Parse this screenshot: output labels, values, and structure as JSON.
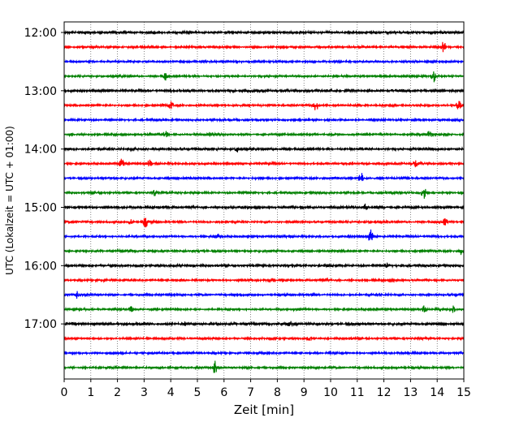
{
  "chart_data": {
    "type": "line",
    "title": "",
    "xlabel": "Zeit  [min]",
    "ylabel": "UTC (Lokalzeit = UTC + 01:00)",
    "xlim": [
      0,
      15
    ],
    "x_ticks": [
      "0",
      "1",
      "2",
      "3",
      "4",
      "5",
      "6",
      "7",
      "8",
      "9",
      "10",
      "11",
      "12",
      "13",
      "14",
      "15"
    ],
    "y_ticks": [
      "12:00",
      "13:00",
      "14:00",
      "15:00",
      "16:00",
      "17:00"
    ],
    "row_interval_minutes": 15,
    "grid": "vertical dotted",
    "colors": [
      "#000000",
      "#ff0000",
      "#0000ff",
      "#008000"
    ],
    "traces": [
      {
        "start": "12:00",
        "color": "#000000",
        "events": []
      },
      {
        "start": "12:15",
        "color": "#ff0000",
        "events": [
          {
            "t": 14.25,
            "amp": 1.0
          }
        ]
      },
      {
        "start": "12:30",
        "color": "#0000ff",
        "events": []
      },
      {
        "start": "12:45",
        "color": "#008000",
        "events": [
          {
            "t": 3.8,
            "amp": 0.5
          },
          {
            "t": 13.85,
            "amp": 1.0
          }
        ]
      },
      {
        "start": "13:00",
        "color": "#000000",
        "events": []
      },
      {
        "start": "13:15",
        "color": "#ff0000",
        "events": [
          {
            "t": 4.0,
            "amp": 0.5
          },
          {
            "t": 9.45,
            "amp": 0.9
          },
          {
            "t": 14.8,
            "amp": 0.6
          }
        ]
      },
      {
        "start": "13:30",
        "color": "#0000ff",
        "events": []
      },
      {
        "start": "13:45",
        "color": "#008000",
        "events": [
          {
            "t": 3.8,
            "amp": 0.8
          },
          {
            "t": 5.5,
            "amp": 0.4
          },
          {
            "t": 13.7,
            "amp": 0.6
          }
        ]
      },
      {
        "start": "14:00",
        "color": "#000000",
        "events": [
          {
            "t": 6.5,
            "amp": 0.4
          }
        ]
      },
      {
        "start": "14:15",
        "color": "#ff0000",
        "events": [
          {
            "t": 2.15,
            "amp": 0.8
          },
          {
            "t": 3.2,
            "amp": 0.6
          },
          {
            "t": 13.2,
            "amp": 0.5
          }
        ]
      },
      {
        "start": "14:30",
        "color": "#0000ff",
        "events": [
          {
            "t": 11.15,
            "amp": 0.9
          }
        ]
      },
      {
        "start": "14:45",
        "color": "#008000",
        "events": [
          {
            "t": 3.4,
            "amp": 0.4
          },
          {
            "t": 13.5,
            "amp": 0.9
          }
        ]
      },
      {
        "start": "15:00",
        "color": "#000000",
        "events": [
          {
            "t": 11.3,
            "amp": 0.6
          }
        ]
      },
      {
        "start": "15:15",
        "color": "#ff0000",
        "events": [
          {
            "t": 2.5,
            "amp": 0.5
          },
          {
            "t": 3.05,
            "amp": 0.9
          },
          {
            "t": 14.3,
            "amp": 0.6
          }
        ]
      },
      {
        "start": "15:30",
        "color": "#0000ff",
        "events": [
          {
            "t": 5.8,
            "amp": 0.4
          },
          {
            "t": 11.5,
            "amp": 1.0
          }
        ]
      },
      {
        "start": "15:45",
        "color": "#008000",
        "events": [
          {
            "t": 14.9,
            "amp": 0.6
          }
        ]
      },
      {
        "start": "16:00",
        "color": "#000000",
        "events": [
          {
            "t": 12.1,
            "amp": 0.3
          }
        ]
      },
      {
        "start": "16:15",
        "color": "#ff0000",
        "events": [
          {
            "t": 7.8,
            "amp": 0.3
          }
        ]
      },
      {
        "start": "16:30",
        "color": "#0000ff",
        "events": [
          {
            "t": 0.5,
            "amp": 0.6
          }
        ]
      },
      {
        "start": "16:45",
        "color": "#008000",
        "events": [
          {
            "t": 2.5,
            "amp": 0.4
          },
          {
            "t": 13.5,
            "amp": 0.4
          },
          {
            "t": 14.6,
            "amp": 0.4
          }
        ]
      },
      {
        "start": "17:00",
        "color": "#000000",
        "events": [
          {
            "t": 4.5,
            "amp": 0.3
          },
          {
            "t": 8.5,
            "amp": 0.3
          }
        ]
      },
      {
        "start": "17:15",
        "color": "#ff0000",
        "events": [
          {
            "t": 9.2,
            "amp": 0.3
          }
        ]
      },
      {
        "start": "17:30",
        "color": "#0000ff",
        "events": []
      },
      {
        "start": "17:45",
        "color": "#008000",
        "events": [
          {
            "t": 5.65,
            "amp": 1.0
          }
        ]
      }
    ]
  }
}
